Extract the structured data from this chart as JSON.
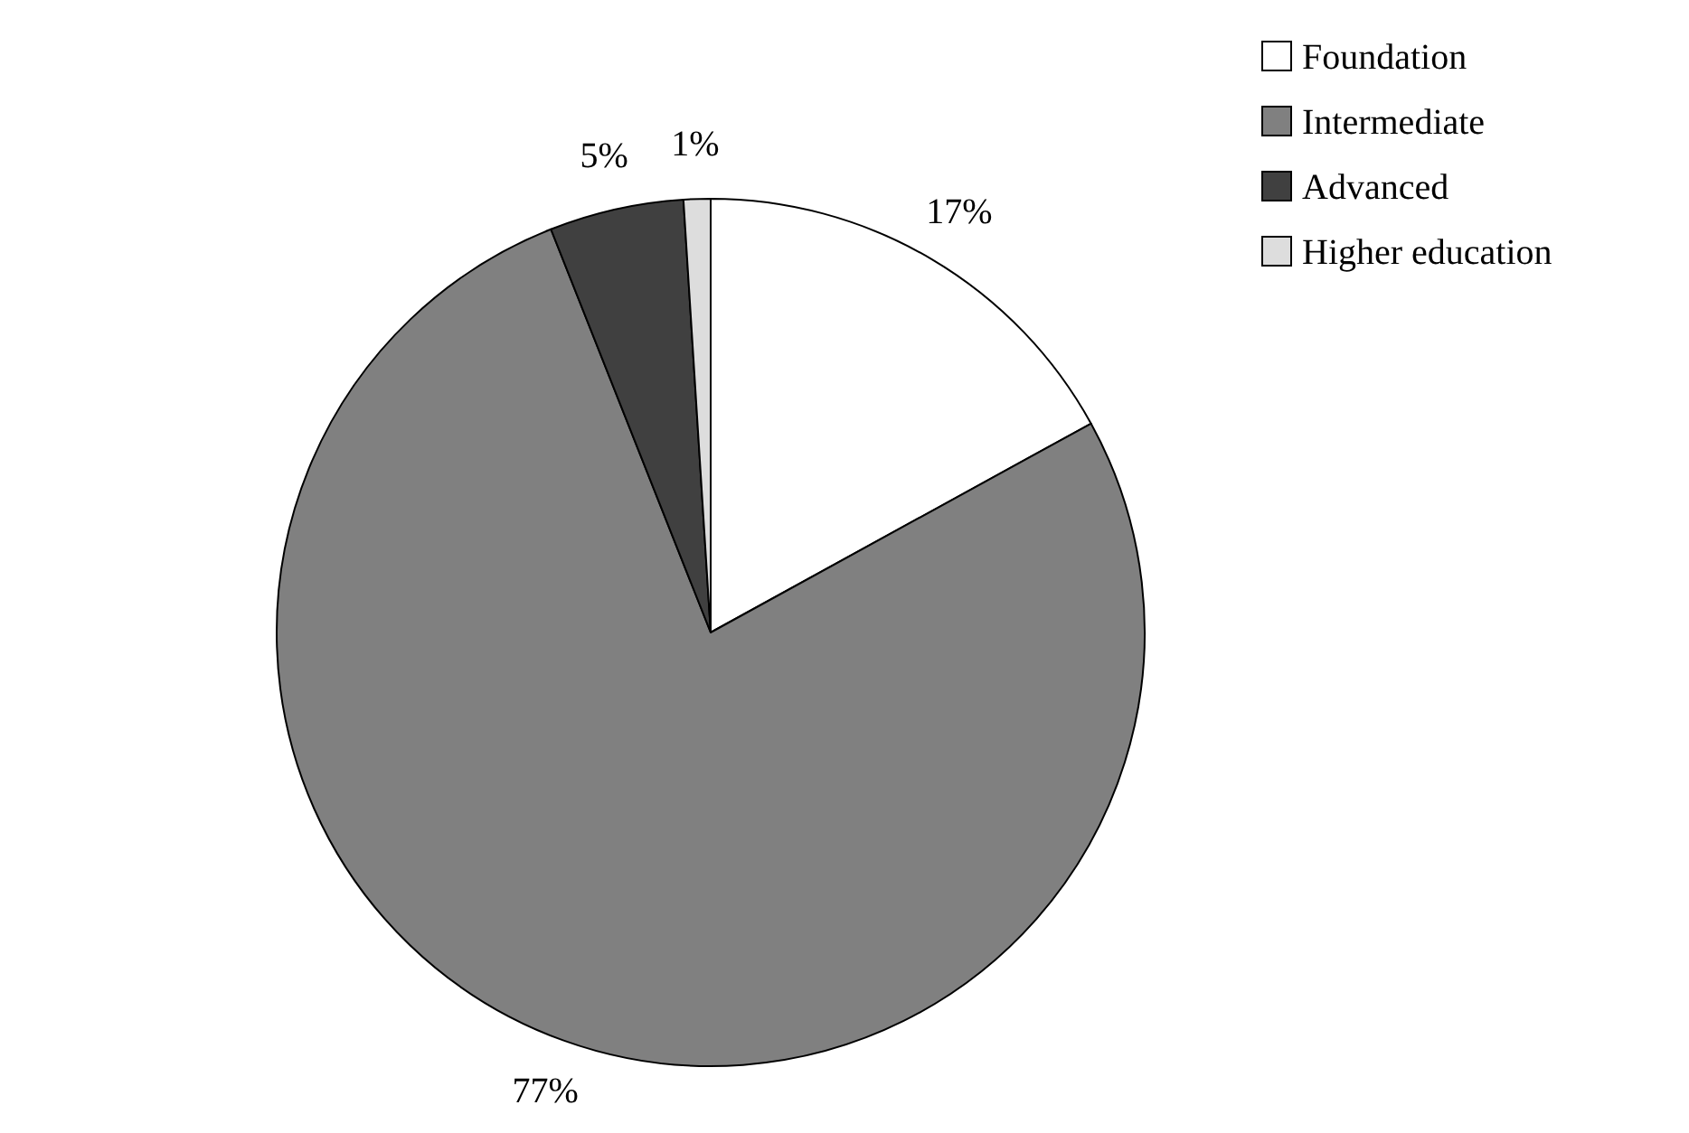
{
  "chart_data": {
    "type": "pie",
    "categories": [
      "Foundation",
      "Intermediate",
      "Advanced",
      "Higher education"
    ],
    "values": [
      17,
      77,
      5,
      1
    ],
    "colors": [
      "#ffffff",
      "#808080",
      "#404040",
      "#dddddd"
    ],
    "value_labels": [
      "17%",
      "77%",
      "5%",
      "1%"
    ],
    "legend": "top right"
  }
}
